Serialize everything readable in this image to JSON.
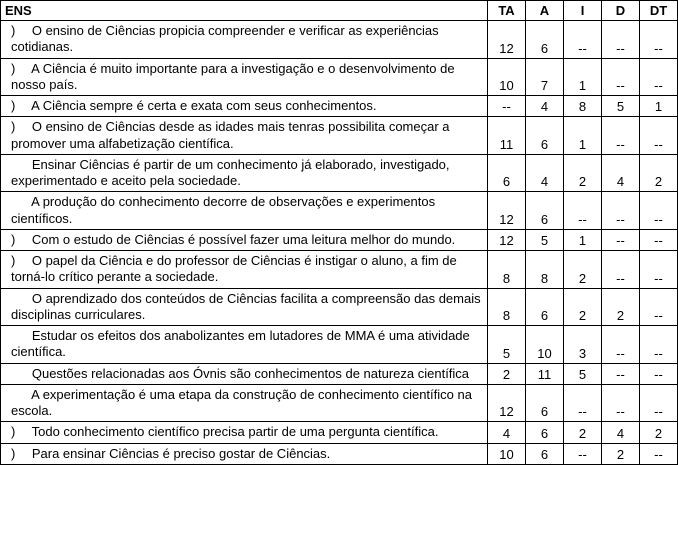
{
  "table": {
    "columns": [
      "ENS",
      "TA",
      "A",
      "I",
      "D",
      "DT"
    ],
    "column_widths": [
      "auto",
      "38px",
      "38px",
      "38px",
      "38px",
      "38px"
    ],
    "empty_symbol": "--",
    "header_bg": "#ffffff",
    "border_color": "#000000",
    "font_family": "Arial",
    "font_size_pt": 10,
    "rows": [
      {
        "marker": ")",
        "text": "O ensino de Ciências propicia compreender e verificar as experiências cotidianas.",
        "values": [
          "12",
          "6",
          "--",
          "--",
          "--"
        ]
      },
      {
        "marker": ")",
        "text": "A Ciência é muito importante para a investigação e o desenvolvimento de nosso país.",
        "values": [
          "10",
          "7",
          "1",
          "--",
          "--"
        ]
      },
      {
        "marker": ")",
        "text": "A Ciência sempre é certa e exata com seus conhecimentos.",
        "values": [
          "--",
          "4",
          "8",
          "5",
          "1"
        ]
      },
      {
        "marker": ")",
        "text": "O ensino de Ciências desde as idades mais tenras possibilita começar a promover uma alfabetização científica.",
        "values": [
          "11",
          "6",
          "1",
          "--",
          "--"
        ]
      },
      {
        "marker": "",
        "text": "Ensinar Ciências é partir de um conhecimento já elaborado, investigado, experimentado e aceito pela sociedade.",
        "values": [
          "6",
          "4",
          "2",
          "4",
          "2"
        ]
      },
      {
        "marker": "",
        "text": "A produção do conhecimento decorre de observações e experimentos científicos.",
        "values": [
          "12",
          "6",
          "--",
          "--",
          "--"
        ]
      },
      {
        "marker": ")",
        "text": "Com o estudo de Ciências é possível fazer uma leitura melhor do mundo.",
        "values": [
          "12",
          "5",
          "1",
          "--",
          "--"
        ]
      },
      {
        "marker": ")",
        "text": "O papel da Ciência e do professor de Ciências é instigar o aluno, a fim de torná-lo crítico perante a sociedade.",
        "values": [
          "8",
          "8",
          "2",
          "--",
          "--"
        ]
      },
      {
        "marker": "",
        "text": "O aprendizado dos conteúdos de Ciências facilita a compreensão das demais disciplinas curriculares.",
        "values": [
          "8",
          "6",
          "2",
          "2",
          "--"
        ]
      },
      {
        "marker": "",
        "text": "Estudar os efeitos dos anabolizantes em lutadores de MMA é uma atividade científica.",
        "values": [
          "5",
          "10",
          "3",
          "--",
          "--"
        ]
      },
      {
        "marker": "",
        "text": "Questões relacionadas aos Óvnis são conhecimentos de natureza científica",
        "values": [
          "2",
          "11",
          "5",
          "--",
          "--"
        ]
      },
      {
        "marker": "",
        "text": "A experimentação é uma etapa da construção de conhecimento científico na escola.",
        "values": [
          "12",
          "6",
          "--",
          "--",
          "--"
        ]
      },
      {
        "marker": ")",
        "text": "Todo conhecimento científico precisa partir de uma pergunta científica.",
        "values": [
          "4",
          "6",
          "2",
          "4",
          "2"
        ]
      },
      {
        "marker": ")",
        "text": "Para ensinar Ciências é preciso gostar de Ciências.",
        "values": [
          "10",
          "6",
          "--",
          "2",
          "--"
        ]
      }
    ]
  }
}
